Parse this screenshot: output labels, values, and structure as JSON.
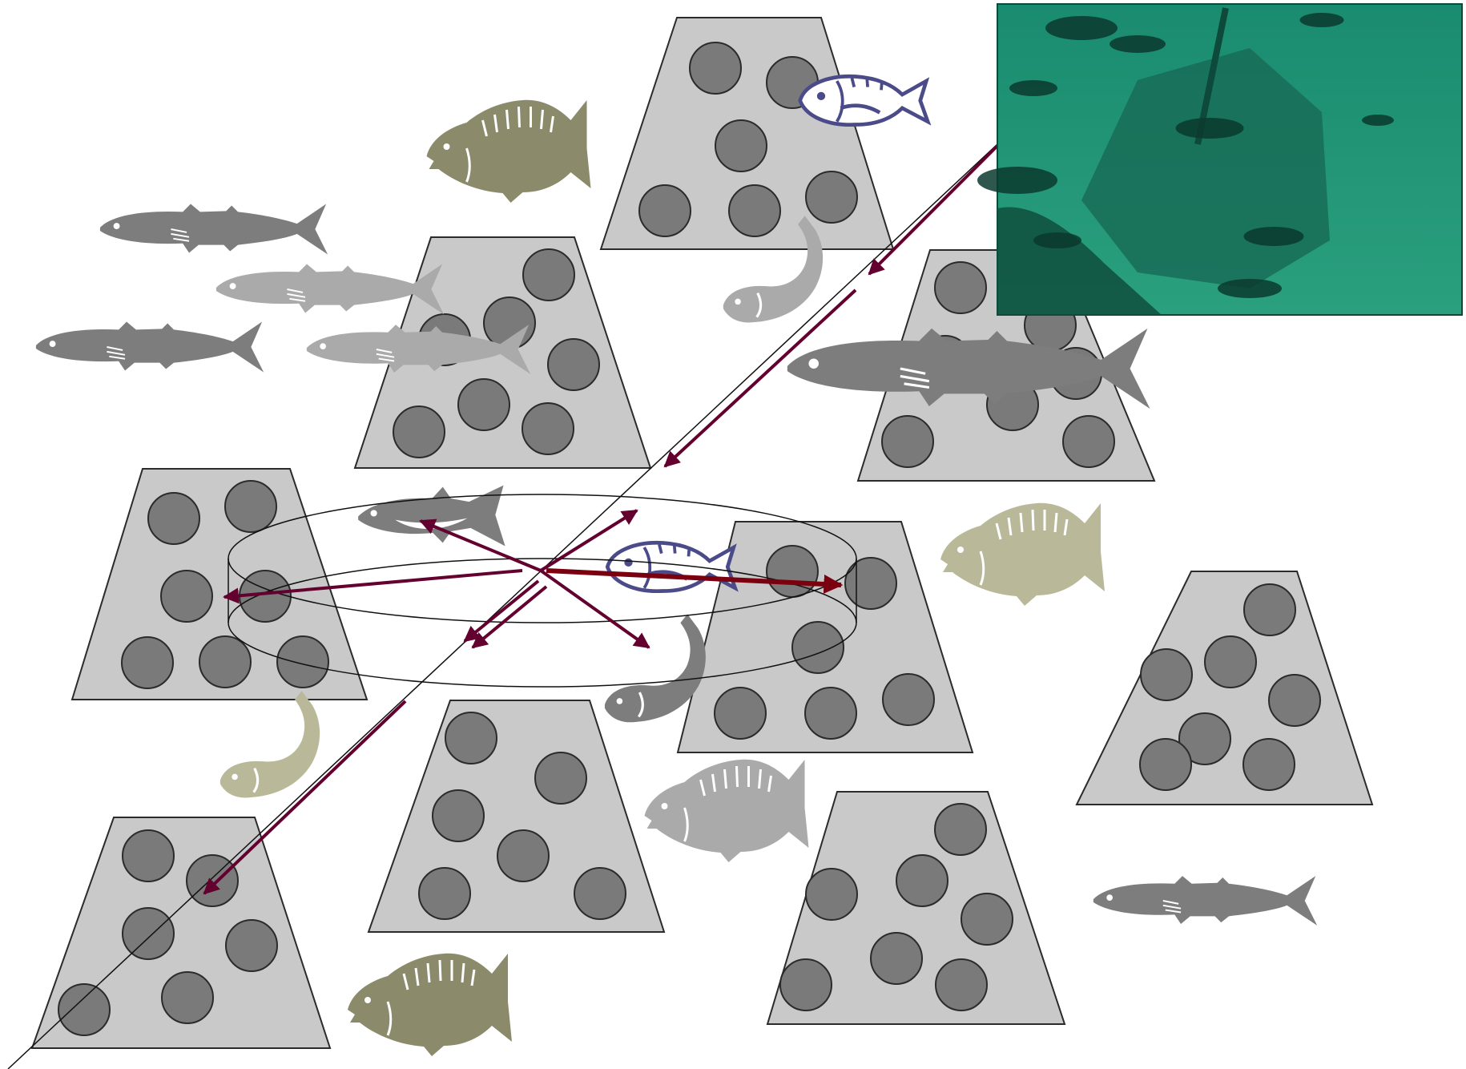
{
  "colors": {
    "block_fill": "#c9c9c9",
    "block_stroke": "#2b2b2b",
    "hole_fill": "#7a7a7a",
    "arrow": "#64002f",
    "arrow_strong": "#7a0010",
    "line": "#111111",
    "fish_olive": "#8b8b6c",
    "fish_light_olive": "#b9b99a",
    "fish_dark_grey": "#7d7d7d",
    "fish_light_grey": "#aaaaaa",
    "fish_navy": "#4b4b8a",
    "water": "#1f8f72"
  },
  "diagram": {
    "blocks": [
      {
        "id": "top-center",
        "holes": 6
      },
      {
        "id": "upper-left",
        "holes": 7
      },
      {
        "id": "upper-right",
        "holes": 7
      },
      {
        "id": "middle-left",
        "holes": 7
      },
      {
        "id": "center-right",
        "holes": 7
      },
      {
        "id": "far-right",
        "holes": 7
      },
      {
        "id": "lower-center",
        "holes": 6
      },
      {
        "id": "lower-right",
        "holes": 7
      },
      {
        "id": "bottom-left",
        "holes": 7
      }
    ],
    "fish": [
      {
        "id": "bream-top",
        "kind": "bream-icon"
      },
      {
        "id": "mackerel-1",
        "kind": "mackerel-icon"
      },
      {
        "id": "mackerel-2",
        "kind": "mackerel-icon"
      },
      {
        "id": "mackerel-3",
        "kind": "mackerel-icon"
      },
      {
        "id": "mackerel-4",
        "kind": "mackerel-icon"
      },
      {
        "id": "sea-bream-outline-top",
        "kind": "sea-bream-icon"
      },
      {
        "id": "leaping-fish-1",
        "kind": "leaping-fish-icon"
      },
      {
        "id": "large-mackerel",
        "kind": "mackerel-icon"
      },
      {
        "id": "tuna",
        "kind": "tuna-icon"
      },
      {
        "id": "sea-bream-outline-center",
        "kind": "sea-bream-icon"
      },
      {
        "id": "bream-right",
        "kind": "bream-icon"
      },
      {
        "id": "leaping-fish-2",
        "kind": "leaping-fish-icon"
      },
      {
        "id": "leaping-fish-3",
        "kind": "leaping-fish-icon"
      },
      {
        "id": "bream-center-low",
        "kind": "bream-icon"
      },
      {
        "id": "mackerel-right",
        "kind": "mackerel-icon"
      },
      {
        "id": "bream-bottom",
        "kind": "bream-icon"
      }
    ],
    "photo": {
      "subject": "underwater-reef-photo"
    }
  }
}
